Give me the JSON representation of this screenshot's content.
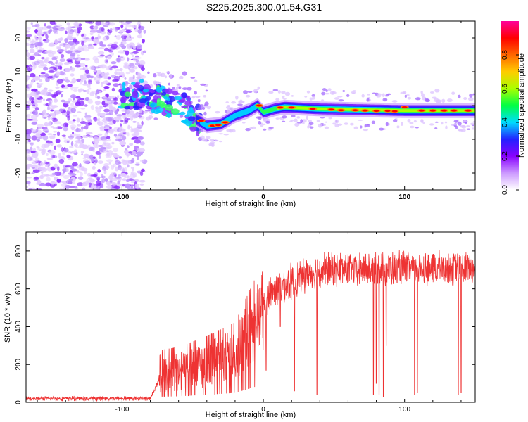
{
  "title": "S225.2025.300.01.54.G31",
  "chart_data": [
    {
      "type": "heatmap",
      "xlabel": "Height of straight line (km)",
      "ylabel": "Frequency (Hz)",
      "xlim": [
        -168,
        150
      ],
      "ylim": [
        -25,
        25
      ],
      "x_ticks": [
        -100,
        0,
        100
      ],
      "y_ticks": [
        20,
        10,
        0,
        -10,
        -20
      ],
      "ridge_frequency_hz": [
        {
          "x": -98,
          "y": 3
        },
        {
          "x": -88,
          "y": 3.5
        },
        {
          "x": -80,
          "y": 2.5
        },
        {
          "x": -70,
          "y": 1.5
        },
        {
          "x": -62,
          "y": 0
        },
        {
          "x": -55,
          "y": -1
        },
        {
          "x": -48,
          "y": -4
        },
        {
          "x": -40,
          "y": -6
        },
        {
          "x": -30,
          "y": -5.5
        },
        {
          "x": -20,
          "y": -3
        },
        {
          "x": -10,
          "y": -1.5
        },
        {
          "x": -4,
          "y": 0
        },
        {
          "x": 0,
          "y": -2
        },
        {
          "x": 8,
          "y": -1
        },
        {
          "x": 15,
          "y": -0.5
        },
        {
          "x": 40,
          "y": -1
        },
        {
          "x": 100,
          "y": -1.5
        },
        {
          "x": 150,
          "y": -1.5
        }
      ],
      "colorbar": {
        "label": "Normalized spectral amplitude",
        "range": [
          0,
          1
        ],
        "ticks": [
          "0.0",
          "0.2",
          "0.4",
          "0.6",
          "0.8"
        ],
        "colors": [
          "#ffffff",
          "#cc99ff",
          "#8800ff",
          "#2222ff",
          "#00ddff",
          "#00ff44",
          "#aaff00",
          "#ffcc00",
          "#ff6600",
          "#ff0000",
          "#ff0099"
        ]
      }
    },
    {
      "type": "line",
      "xlabel": "Height of straight line (km)",
      "ylabel": "SNR (10 * v/v)",
      "xlim": [
        -168,
        150
      ],
      "ylim": [
        0,
        900
      ],
      "x_ticks": [
        -100,
        0,
        100
      ],
      "y_ticks": [
        0,
        200,
        400,
        600,
        800
      ],
      "color": "#ee3333",
      "envelope": [
        {
          "x": -168,
          "y": 20
        },
        {
          "x": -80,
          "y": 20
        },
        {
          "x": -72,
          "y": 150
        },
        {
          "x": -60,
          "y": 160
        },
        {
          "x": -40,
          "y": 200
        },
        {
          "x": -20,
          "y": 250
        },
        {
          "x": -5,
          "y": 420
        },
        {
          "x": 5,
          "y": 580
        },
        {
          "x": 20,
          "y": 640
        },
        {
          "x": 40,
          "y": 700
        },
        {
          "x": 150,
          "y": 710
        }
      ],
      "dropouts": [
        {
          "x": 2,
          "y": 170
        },
        {
          "x": 12,
          "y": 400
        },
        {
          "x": 22,
          "y": 60
        },
        {
          "x": 38,
          "y": 40
        },
        {
          "x": 78,
          "y": 40
        },
        {
          "x": 80,
          "y": 100
        },
        {
          "x": 82,
          "y": 40
        },
        {
          "x": 85,
          "y": 30
        },
        {
          "x": 87,
          "y": 300
        },
        {
          "x": 107,
          "y": 40
        },
        {
          "x": 109,
          "y": 50
        },
        {
          "x": 138,
          "y": 40
        },
        {
          "x": 140,
          "y": 50
        }
      ]
    }
  ]
}
